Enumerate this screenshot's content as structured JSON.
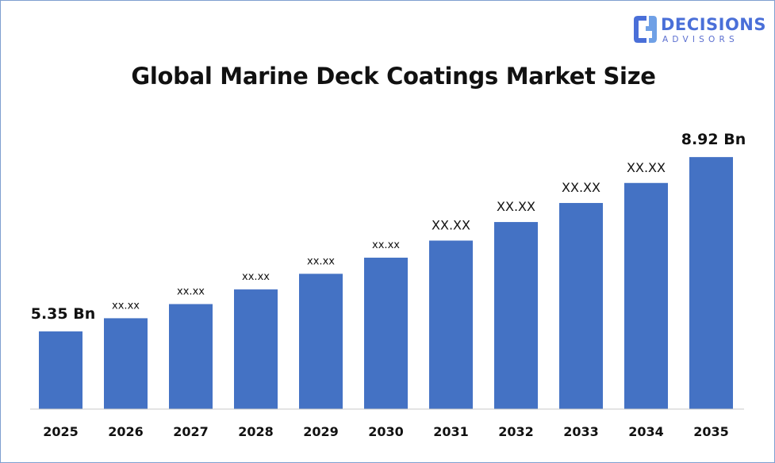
{
  "brand": {
    "name_line1": "DECISIONS",
    "name_line2": "ADVISORS",
    "colors": {
      "primary": "#4a6fd8",
      "secondary": "#6fa0e6"
    },
    "icon": "decisions-logo-icon"
  },
  "chart_data": {
    "type": "bar",
    "title": "Global Marine Deck Coatings Market Size",
    "xlabel": "",
    "ylabel": "",
    "categories": [
      "2025",
      "2026",
      "2027",
      "2028",
      "2029",
      "2030",
      "2031",
      "2032",
      "2033",
      "2034",
      "2035"
    ],
    "values": [
      5.35,
      5.62,
      5.91,
      6.21,
      6.53,
      6.86,
      7.21,
      7.59,
      7.98,
      8.39,
      8.92
    ],
    "data_labels": [
      "5.35 Bn",
      "xx.xx",
      "xx.xx",
      "xx.xx",
      "xx.xx",
      "xx.xx",
      "XX.XX",
      "XX.XX",
      "XX.XX",
      "XX.XX",
      "8.92 Bn"
    ],
    "bar_color": "#4472c4",
    "grid": false,
    "legend": "none",
    "ylim": [
      0,
      9.5
    ]
  }
}
